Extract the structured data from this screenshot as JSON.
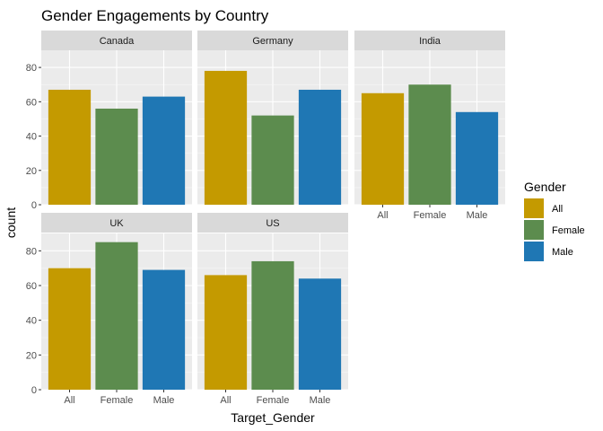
{
  "chart_data": {
    "type": "bar",
    "title": "Gender Engagements by Country",
    "xlabel": "Target_Gender",
    "ylabel": "count",
    "categories": [
      "All",
      "Female",
      "Male"
    ],
    "ylim": [
      0,
      90
    ],
    "yticks": [
      0,
      20,
      40,
      60,
      80
    ],
    "grid": true,
    "legend": {
      "title": "Gender",
      "position": "right",
      "entries": [
        "All",
        "Female",
        "Male"
      ]
    },
    "colors": {
      "All": "#c49a00",
      "Female": "#5c8c4e",
      "Male": "#1f77b4"
    },
    "panels": [
      {
        "name": "Canada",
        "values": [
          67,
          56,
          63
        ]
      },
      {
        "name": "Germany",
        "values": [
          78,
          52,
          67
        ]
      },
      {
        "name": "India",
        "values": [
          65,
          70,
          54
        ]
      },
      {
        "name": "UK",
        "values": [
          70,
          85,
          69
        ]
      },
      {
        "name": "US",
        "values": [
          66,
          74,
          64
        ]
      }
    ]
  }
}
